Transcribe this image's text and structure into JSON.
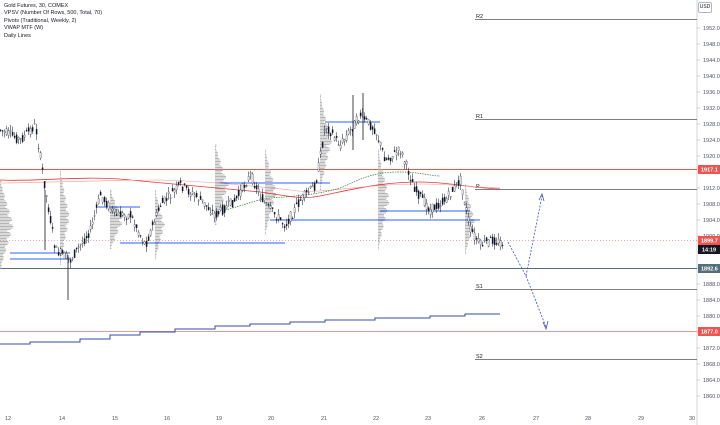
{
  "legend": [
    "Gold Futures, 30, COMEX",
    "VPSV (Number Of Rows, 500, Total, 70)",
    "Pivots (Traditional, Weekly, 2)",
    "VWAP MTF (W)",
    "Daily Lines"
  ],
  "currency": "USD",
  "y_ticks": [
    "1952.0",
    "1948.0",
    "1944.0",
    "1940.0",
    "1936.0",
    "1932.0",
    "1928.0",
    "1924.0",
    "1920.0",
    "1916.0",
    "1912.0",
    "1908.0",
    "1904.0",
    "1900.0",
    "1896.0",
    "1892.0",
    "1888.0",
    "1884.0",
    "1880.0",
    "1876.0",
    "1872.0",
    "1868.0",
    "1864.0",
    "1860.0"
  ],
  "x_ticks": [
    "12",
    "14",
    "15",
    "16",
    "19",
    "20",
    "21",
    "22",
    "23",
    "26",
    "27",
    "28",
    "29",
    "30"
  ],
  "pivot_labels": {
    "r2": "R2",
    "r1": "R1",
    "p": "P",
    "s1": "S1",
    "s2": "S2"
  },
  "price_tags": {
    "last": "1899.7",
    "countdown": "14:19",
    "level_high": "1917.1",
    "level_low": "1892.6",
    "level_bottom": "1877.0"
  },
  "colors": {
    "tag_red": "#ef5350",
    "tag_slate": "#546e7a",
    "tag_dark": "#131722",
    "level_blue": "#2962ff",
    "vwap": "#2e7d32",
    "ema": "#e53935",
    "arrow": "#3f51b5",
    "profile": "#9e9e9e"
  }
}
